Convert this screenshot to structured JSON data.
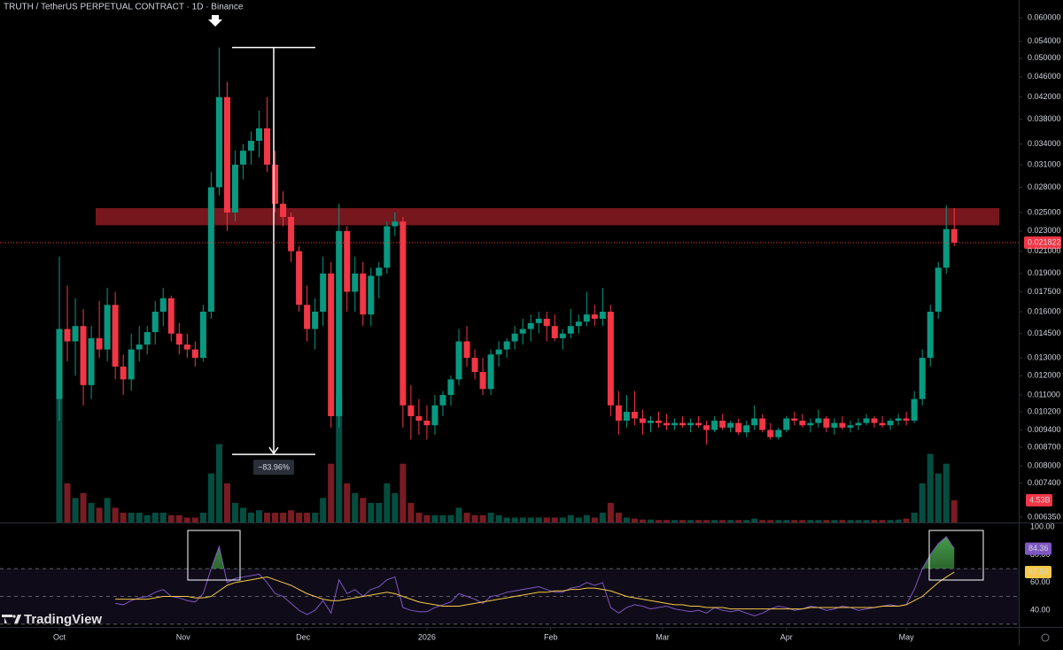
{
  "chart_data": {
    "type": "candlestick",
    "title": "TRUTH / TetherUS PERPETUAL CONTRACT · 1D · Binance",
    "brand": "TradingView",
    "up_color": "#089981",
    "down_color": "#f23645",
    "log_scale": true,
    "ylim": [
      0.0062,
      0.065
    ],
    "yticks": [
      {
        "value": 0.06,
        "label": "0.060000"
      },
      {
        "value": 0.054,
        "label": "0.054000"
      },
      {
        "value": 0.05,
        "label": "0.050000"
      },
      {
        "value": 0.046,
        "label": "0.046000"
      },
      {
        "value": 0.042,
        "label": "0.042000"
      },
      {
        "value": 0.038,
        "label": "0.038000"
      },
      {
        "value": 0.034,
        "label": "0.034000"
      },
      {
        "value": 0.031,
        "label": "0.031000"
      },
      {
        "value": 0.028,
        "label": "0.028000"
      },
      {
        "value": 0.025,
        "label": "0.025000"
      },
      {
        "value": 0.023,
        "label": "0.023000"
      },
      {
        "value": 0.021,
        "label": "0.021000"
      },
      {
        "value": 0.019,
        "label": "0.019000"
      },
      {
        "value": 0.0175,
        "label": "0.017500"
      },
      {
        "value": 0.016,
        "label": "0.016000"
      },
      {
        "value": 0.0145,
        "label": "0.014500"
      },
      {
        "value": 0.013,
        "label": "0.013000"
      },
      {
        "value": 0.012,
        "label": "0.012000"
      },
      {
        "value": 0.011,
        "label": "0.011000"
      },
      {
        "value": 0.0102,
        "label": "0.010200"
      },
      {
        "value": 0.0094,
        "label": "0.009400"
      },
      {
        "value": 0.0087,
        "label": "0.008700"
      },
      {
        "value": 0.008,
        "label": "0.008000"
      },
      {
        "value": 0.0074,
        "label": "0.007400"
      },
      {
        "value": 0.00635,
        "label": "0.006350"
      }
    ],
    "xlim": [
      -7,
      240
    ],
    "xticks": [
      {
        "value": 0,
        "label": "Oct"
      },
      {
        "value": 31,
        "label": "Nov"
      },
      {
        "value": 61,
        "label": "Dec"
      },
      {
        "value": 92,
        "label": "2026"
      },
      {
        "value": 123,
        "label": "Feb"
      },
      {
        "value": 151,
        "label": "Mar"
      },
      {
        "value": 182,
        "label": "Apr"
      },
      {
        "value": 212,
        "label": "May"
      }
    ],
    "x": [
      0,
      2,
      4,
      6,
      8,
      10,
      12,
      14,
      16,
      18,
      20,
      22,
      24,
      26,
      28,
      30,
      32,
      34,
      36,
      38,
      40,
      42,
      44,
      46,
      48,
      50,
      52,
      54,
      56,
      58,
      60,
      62,
      64,
      66,
      68,
      70,
      72,
      74,
      76,
      78,
      80,
      82,
      84,
      86,
      88,
      90,
      92,
      94,
      96,
      98,
      100,
      102,
      104,
      106,
      108,
      110,
      112,
      114,
      116,
      118,
      120,
      122,
      124,
      126,
      128,
      130,
      132,
      134,
      136,
      138,
      140,
      142,
      144,
      146,
      148,
      150,
      152,
      154,
      156,
      158,
      160,
      162,
      164,
      166,
      168,
      170,
      172,
      174,
      176,
      178,
      180,
      182,
      184,
      186,
      188,
      190,
      192,
      194,
      196,
      198,
      200,
      202,
      204,
      206,
      208,
      210,
      212,
      214,
      216,
      218,
      220,
      222,
      224
    ],
    "ohlc": [
      [
        0.0108,
        0.0205,
        0.0098,
        0.0148
      ],
      [
        0.0148,
        0.018,
        0.0128,
        0.014
      ],
      [
        0.014,
        0.017,
        0.012,
        0.015
      ],
      [
        0.015,
        0.0162,
        0.0105,
        0.0115
      ],
      [
        0.0115,
        0.015,
        0.0108,
        0.0142
      ],
      [
        0.0142,
        0.0168,
        0.013,
        0.0135
      ],
      [
        0.0135,
        0.0178,
        0.0128,
        0.0165
      ],
      [
        0.0165,
        0.0175,
        0.0118,
        0.0125
      ],
      [
        0.0125,
        0.0132,
        0.011,
        0.0118
      ],
      [
        0.0118,
        0.0145,
        0.0112,
        0.0135
      ],
      [
        0.0135,
        0.015,
        0.0128,
        0.0138
      ],
      [
        0.0138,
        0.015,
        0.0132,
        0.0146
      ],
      [
        0.0146,
        0.0168,
        0.0138,
        0.016
      ],
      [
        0.016,
        0.0178,
        0.015,
        0.017
      ],
      [
        0.017,
        0.0172,
        0.014,
        0.0145
      ],
      [
        0.0145,
        0.0152,
        0.0132,
        0.0138
      ],
      [
        0.0138,
        0.0145,
        0.013,
        0.0135
      ],
      [
        0.0135,
        0.014,
        0.0125,
        0.013
      ],
      [
        0.013,
        0.0165,
        0.0128,
        0.016
      ],
      [
        0.016,
        0.03,
        0.0155,
        0.028
      ],
      [
        0.028,
        0.0525,
        0.027,
        0.042
      ],
      [
        0.042,
        0.045,
        0.023,
        0.025
      ],
      [
        0.025,
        0.033,
        0.024,
        0.031
      ],
      [
        0.031,
        0.034,
        0.029,
        0.033
      ],
      [
        0.033,
        0.036,
        0.031,
        0.0345
      ],
      [
        0.0345,
        0.0395,
        0.032,
        0.0365
      ],
      [
        0.0365,
        0.042,
        0.03,
        0.031
      ],
      [
        0.031,
        0.033,
        0.025,
        0.026
      ],
      [
        0.026,
        0.0275,
        0.0235,
        0.0245
      ],
      [
        0.0245,
        0.025,
        0.02,
        0.021
      ],
      [
        0.021,
        0.0215,
        0.016,
        0.0165
      ],
      [
        0.0165,
        0.018,
        0.014,
        0.0148
      ],
      [
        0.0148,
        0.017,
        0.0135,
        0.016
      ],
      [
        0.016,
        0.0205,
        0.015,
        0.019
      ],
      [
        0.019,
        0.02,
        0.0095,
        0.01
      ],
      [
        0.01,
        0.026,
        0.0095,
        0.023
      ],
      [
        0.023,
        0.0235,
        0.016,
        0.0175
      ],
      [
        0.0175,
        0.0205,
        0.016,
        0.019
      ],
      [
        0.019,
        0.02,
        0.015,
        0.0158
      ],
      [
        0.0158,
        0.0195,
        0.015,
        0.0188
      ],
      [
        0.0188,
        0.02,
        0.017,
        0.0195
      ],
      [
        0.0195,
        0.024,
        0.019,
        0.0235
      ],
      [
        0.0235,
        0.025,
        0.0225,
        0.024
      ],
      [
        0.024,
        0.0245,
        0.0095,
        0.0105
      ],
      [
        0.0105,
        0.0115,
        0.009,
        0.01
      ],
      [
        0.01,
        0.0108,
        0.0092,
        0.0098
      ],
      [
        0.0098,
        0.0105,
        0.009,
        0.0096
      ],
      [
        0.0096,
        0.011,
        0.0092,
        0.0105
      ],
      [
        0.0105,
        0.0112,
        0.01,
        0.011
      ],
      [
        0.011,
        0.012,
        0.0105,
        0.0118
      ],
      [
        0.0118,
        0.0148,
        0.0115,
        0.014
      ],
      [
        0.014,
        0.015,
        0.0125,
        0.013
      ],
      [
        0.013,
        0.0135,
        0.0118,
        0.0122
      ],
      [
        0.0122,
        0.013,
        0.011,
        0.0113
      ],
      [
        0.0113,
        0.0135,
        0.011,
        0.0132
      ],
      [
        0.0132,
        0.014,
        0.0125,
        0.0135
      ],
      [
        0.0135,
        0.0142,
        0.013,
        0.014
      ],
      [
        0.014,
        0.015,
        0.0135,
        0.0145
      ],
      [
        0.0145,
        0.0155,
        0.0138,
        0.0148
      ],
      [
        0.0148,
        0.0158,
        0.014,
        0.0152
      ],
      [
        0.0152,
        0.016,
        0.0145,
        0.0155
      ],
      [
        0.0155,
        0.016,
        0.014,
        0.015
      ],
      [
        0.015,
        0.0158,
        0.014,
        0.0142
      ],
      [
        0.0142,
        0.0148,
        0.0135,
        0.0145
      ],
      [
        0.0145,
        0.0162,
        0.0142,
        0.015
      ],
      [
        0.015,
        0.0158,
        0.0145,
        0.0153
      ],
      [
        0.0153,
        0.0175,
        0.015,
        0.0158
      ],
      [
        0.0158,
        0.0165,
        0.015,
        0.0155
      ],
      [
        0.0155,
        0.0178,
        0.015,
        0.016
      ],
      [
        0.016,
        0.0165,
        0.01,
        0.0105
      ],
      [
        0.0105,
        0.0112,
        0.0092,
        0.0098
      ],
      [
        0.0098,
        0.011,
        0.0095,
        0.0102
      ],
      [
        0.0102,
        0.0112,
        0.0096,
        0.0099
      ],
      [
        0.0099,
        0.0103,
        0.0092,
        0.0097
      ],
      [
        0.0097,
        0.01,
        0.0093,
        0.0098
      ],
      [
        0.0098,
        0.0102,
        0.0095,
        0.0097
      ],
      [
        0.0097,
        0.0101,
        0.0094,
        0.0096
      ],
      [
        0.0096,
        0.0099,
        0.0094,
        0.0097
      ],
      [
        0.0097,
        0.01,
        0.0095,
        0.0096
      ],
      [
        0.0096,
        0.0099,
        0.0093,
        0.0097
      ],
      [
        0.0097,
        0.01,
        0.0095,
        0.0096
      ],
      [
        0.0096,
        0.0098,
        0.0088,
        0.0094
      ],
      [
        0.0094,
        0.01,
        0.0093,
        0.0098
      ],
      [
        0.0098,
        0.0101,
        0.0094,
        0.0095
      ],
      [
        0.0095,
        0.0098,
        0.0093,
        0.0097
      ],
      [
        0.0097,
        0.0099,
        0.0092,
        0.0093
      ],
      [
        0.0093,
        0.0098,
        0.0091,
        0.0096
      ],
      [
        0.0096,
        0.0105,
        0.0094,
        0.0099
      ],
      [
        0.0099,
        0.0101,
        0.0093,
        0.0094
      ],
      [
        0.0094,
        0.0097,
        0.009,
        0.0091
      ],
      [
        0.0091,
        0.0095,
        0.009,
        0.0094
      ],
      [
        0.0094,
        0.01,
        0.0093,
        0.0099
      ],
      [
        0.0099,
        0.0102,
        0.0096,
        0.0098
      ],
      [
        0.0098,
        0.0101,
        0.0095,
        0.0096
      ],
      [
        0.0096,
        0.0099,
        0.0093,
        0.0097
      ],
      [
        0.0097,
        0.0103,
        0.0095,
        0.0099
      ],
      [
        0.0099,
        0.01,
        0.0093,
        0.0095
      ],
      [
        0.0095,
        0.0099,
        0.0092,
        0.0097
      ],
      [
        0.0097,
        0.01,
        0.0094,
        0.0095
      ],
      [
        0.0095,
        0.0098,
        0.0093,
        0.0096
      ],
      [
        0.0096,
        0.0099,
        0.0094,
        0.0097
      ],
      [
        0.0097,
        0.0101,
        0.0096,
        0.0099
      ],
      [
        0.0099,
        0.01,
        0.0095,
        0.0097
      ],
      [
        0.0097,
        0.01,
        0.0095,
        0.0096
      ],
      [
        0.0096,
        0.0099,
        0.0094,
        0.0098
      ],
      [
        0.0098,
        0.0101,
        0.0096,
        0.0099
      ],
      [
        0.0099,
        0.0102,
        0.0096,
        0.0098
      ],
      [
        0.0098,
        0.0112,
        0.0097,
        0.0108
      ],
      [
        0.0108,
        0.0135,
        0.0105,
        0.013
      ],
      [
        0.013,
        0.0165,
        0.0125,
        0.016
      ],
      [
        0.016,
        0.02,
        0.0155,
        0.0195
      ],
      [
        0.0195,
        0.0258,
        0.019,
        0.0232
      ],
      [
        0.0232,
        0.0255,
        0.0215,
        0.021822
      ]
    ],
    "volume": {
      "ylim": [
        0,
        30
      ],
      "last_label": "4.53B",
      "values": [
        27,
        8,
        5,
        6,
        4,
        3,
        5,
        3,
        2,
        2,
        2,
        1.5,
        2,
        2,
        1.5,
        1.5,
        1,
        1,
        2,
        10,
        16,
        8,
        4,
        3,
        2,
        2.5,
        2,
        2,
        2,
        2.5,
        2,
        2,
        2,
        5,
        12,
        26,
        8,
        6,
        5,
        4,
        4,
        8,
        6,
        12,
        4,
        2,
        1.5,
        1.5,
        1.5,
        1.5,
        3,
        2,
        1.5,
        1.5,
        2,
        1.5,
        1,
        1,
        1,
        1,
        1,
        1,
        1,
        1,
        1.5,
        1,
        1.5,
        1,
        2,
        4,
        2,
        1,
        0.8,
        0.6,
        0.6,
        0.5,
        0.5,
        0.5,
        0.5,
        0.5,
        0.5,
        0.5,
        0.5,
        0.5,
        0.5,
        0.5,
        0.5,
        0.8,
        0.5,
        0.5,
        0.5,
        0.5,
        0.5,
        0.5,
        0.5,
        0.5,
        0.5,
        0.5,
        0.5,
        0.5,
        0.5,
        0.5,
        0.5,
        0.5,
        0.5,
        0.6,
        0.8,
        2,
        8,
        14,
        10,
        12,
        4.53
      ]
    },
    "resistance_zone": [
      0.0236,
      0.0255
    ],
    "measure": {
      "from": 0.0525,
      "to": 0.00842,
      "label": "−83.96%"
    },
    "rsi": {
      "ylim": [
        28,
        102
      ],
      "yticks": [
        {
          "value": 100,
          "label": "100.00"
        },
        {
          "value": 80,
          "label": "80.00"
        },
        {
          "value": 60,
          "label": "60.00"
        },
        {
          "value": 40,
          "label": "40.00"
        }
      ],
      "bands": [
        70,
        50,
        30
      ],
      "series": [
        {
          "color": "#7e57c2",
          "values": [
            null,
            null,
            null,
            null,
            null,
            null,
            null,
            45,
            44,
            47,
            49,
            50,
            53,
            55,
            50,
            49,
            47,
            46,
            52,
            70,
            86,
            60,
            63,
            64,
            65,
            66,
            60,
            52,
            50,
            45,
            40,
            37,
            40,
            47,
            38,
            62,
            52,
            55,
            50,
            55,
            57,
            62,
            64,
            42,
            40,
            39,
            39,
            42,
            44,
            46,
            52,
            50,
            48,
            45,
            50,
            51,
            53,
            54,
            55,
            56,
            57,
            55,
            53,
            53,
            56,
            57,
            60,
            58,
            60,
            42,
            38,
            42,
            44,
            43,
            41,
            42,
            43,
            41,
            40,
            39,
            40,
            38,
            42,
            40,
            39,
            40,
            38,
            36,
            38,
            41,
            43,
            42,
            40,
            41,
            43,
            42,
            40,
            41,
            43,
            42,
            40,
            41,
            42,
            43,
            44,
            43,
            44,
            55,
            70,
            80,
            88,
            93,
            84.36
          ]
        },
        {
          "color": "#f7c948",
          "values": [
            null,
            null,
            null,
            null,
            null,
            null,
            null,
            48,
            48,
            48,
            48,
            48,
            49,
            50,
            50,
            50,
            50,
            49,
            49,
            50,
            54,
            58,
            60,
            61,
            62,
            63,
            64,
            62,
            60,
            58,
            55,
            52,
            50,
            48,
            47,
            47,
            48,
            49,
            50,
            51,
            52,
            53,
            52,
            50,
            48,
            46,
            45,
            44,
            43,
            43,
            43,
            44,
            45,
            46,
            47,
            48,
            49,
            50,
            51,
            52,
            53,
            53,
            54,
            54,
            55,
            55,
            56,
            56,
            55,
            54,
            52,
            50,
            49,
            48,
            47,
            46,
            45,
            44,
            44,
            43,
            43,
            42,
            42,
            42,
            41,
            41,
            41,
            41,
            41,
            41,
            41,
            41,
            41,
            41,
            42,
            42,
            42,
            42,
            42,
            42,
            42,
            42,
            42,
            43,
            43,
            43,
            44,
            47,
            50,
            55,
            60,
            64,
            67.54
          ]
        }
      ]
    }
  }
}
